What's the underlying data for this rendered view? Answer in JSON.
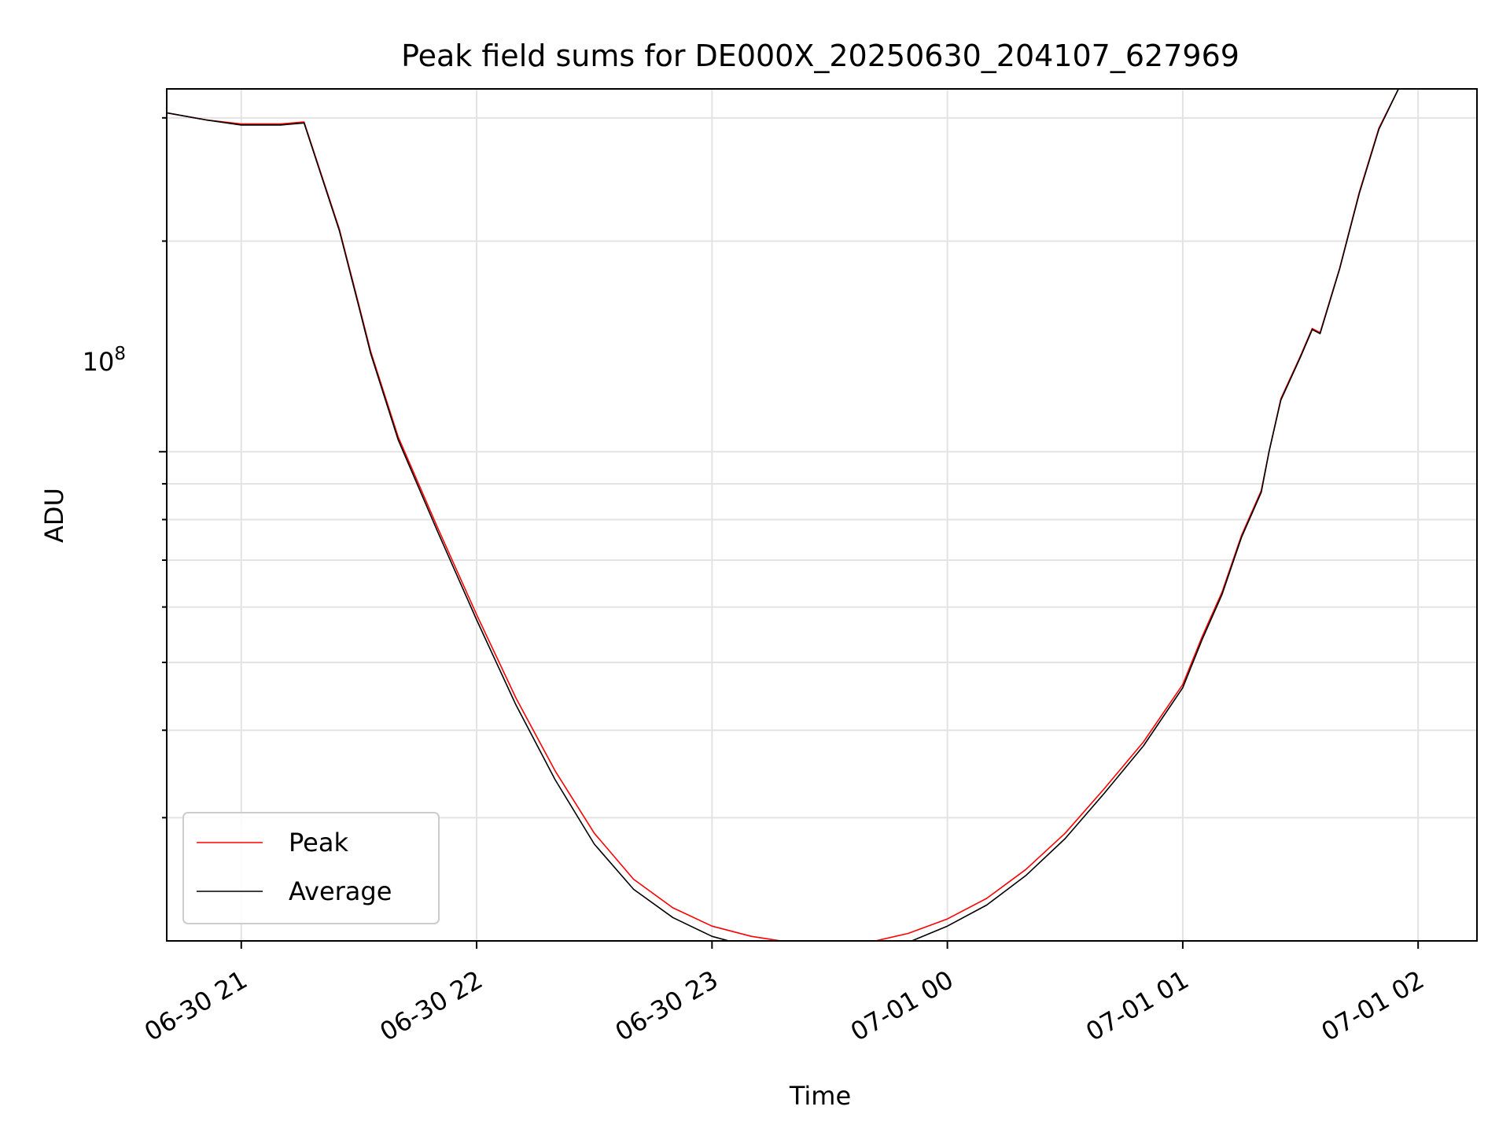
{
  "chart_data": {
    "type": "line",
    "title": "Peak field sums for DE000X_20250630_204107_627969",
    "xlabel": "Time",
    "ylabel": "ADU",
    "y_scale": "log",
    "x_tick_labels": [
      "06-30 21",
      "06-30 22",
      "06-30 23",
      "07-01 00",
      "07-01 01",
      "07-01 02"
    ],
    "x_ticks": [
      "2025-06-30 21:00",
      "2025-06-30 22:00",
      "2025-06-30 23:00",
      "2025-07-01 00:00",
      "2025-07-01 01:00",
      "2025-07-01 02:00"
    ],
    "xlim": [
      "2025-06-30 20:41",
      "2025-07-01 02:15"
    ],
    "ylim": [
      20000000,
      330000000
    ],
    "y_tick_major": {
      "value": 100000000,
      "base": "10",
      "exponent": "8"
    },
    "y_tick_minor": [
      30000000,
      40000000,
      50000000,
      60000000,
      70000000,
      80000000,
      90000000,
      200000000,
      300000000
    ],
    "grid": true,
    "legend_position": "lower-left",
    "legend": [
      {
        "label": "Peak",
        "color": "#ff0000"
      },
      {
        "label": "Average",
        "color": "#000000"
      }
    ],
    "series": [
      {
        "name": "Peak",
        "color": "#ff0000",
        "x": [
          "2025-06-30 20:41",
          "2025-06-30 20:51",
          "2025-06-30 21:00",
          "2025-06-30 21:10",
          "2025-06-30 21:16",
          "2025-06-30 21:25",
          "2025-06-30 21:30",
          "2025-06-30 21:33",
          "2025-06-30 21:40",
          "2025-06-30 21:50",
          "2025-06-30 22:00",
          "2025-06-30 22:10",
          "2025-06-30 22:20",
          "2025-06-30 22:30",
          "2025-06-30 22:40",
          "2025-06-30 22:50",
          "2025-06-30 23:00",
          "2025-06-30 23:10",
          "2025-06-30 23:20",
          "2025-06-30 23:30",
          "2025-06-30 23:40",
          "2025-06-30 23:50",
          "2025-07-01 00:00",
          "2025-07-01 00:10",
          "2025-07-01 00:20",
          "2025-07-01 00:30",
          "2025-07-01 00:40",
          "2025-07-01 00:50",
          "2025-07-01 01:00",
          "2025-07-01 01:05",
          "2025-07-01 01:10",
          "2025-07-01 01:15",
          "2025-07-01 01:20",
          "2025-07-01 01:22",
          "2025-07-01 01:25",
          "2025-07-01 01:30",
          "2025-07-01 01:33",
          "2025-07-01 01:35",
          "2025-07-01 01:40",
          "2025-07-01 01:45",
          "2025-07-01 01:50",
          "2025-07-01 01:55",
          "2025-07-01 02:00"
        ],
        "y": [
          305000000,
          298000000,
          294000000,
          294000000,
          296000000,
          208000000,
          162000000,
          139000000,
          105000000,
          78000000,
          58500000,
          44500000,
          35000000,
          28500000,
          24500000,
          22300000,
          21000000,
          20300000,
          19900000,
          19700000,
          19900000,
          20500000,
          21500000,
          23000000,
          25300000,
          28500000,
          33000000,
          38500000,
          46500000,
          54500000,
          63000000,
          76000000,
          88000000,
          100000000,
          119000000,
          137000000,
          150000000,
          148000000,
          183000000,
          235000000,
          290000000,
          330000000,
          330000000
        ]
      },
      {
        "name": "Average",
        "color": "#000000",
        "x": [
          "2025-06-30 20:41",
          "2025-06-30 20:51",
          "2025-06-30 21:00",
          "2025-06-30 21:10",
          "2025-06-30 21:16",
          "2025-06-30 21:25",
          "2025-06-30 21:30",
          "2025-06-30 21:33",
          "2025-06-30 21:40",
          "2025-06-30 21:50",
          "2025-06-30 22:00",
          "2025-06-30 22:10",
          "2025-06-30 22:20",
          "2025-06-30 22:30",
          "2025-06-30 22:40",
          "2025-06-30 22:50",
          "2025-06-30 23:00",
          "2025-06-30 23:10",
          "2025-06-30 23:20",
          "2025-06-30 23:30",
          "2025-06-30 23:40",
          "2025-06-30 23:50",
          "2025-07-01 00:00",
          "2025-07-01 00:10",
          "2025-07-01 00:20",
          "2025-07-01 00:30",
          "2025-07-01 00:40",
          "2025-07-01 00:50",
          "2025-07-01 01:00",
          "2025-07-01 01:05",
          "2025-07-01 01:10",
          "2025-07-01 01:15",
          "2025-07-01 01:20",
          "2025-07-01 01:22",
          "2025-07-01 01:25",
          "2025-07-01 01:30",
          "2025-07-01 01:33",
          "2025-07-01 01:35",
          "2025-07-01 01:40",
          "2025-07-01 01:45",
          "2025-07-01 01:50",
          "2025-07-01 01:55",
          "2025-07-01 02:00"
        ],
        "y": [
          305000000,
          298000000,
          293000000,
          293000000,
          295000000,
          207000000,
          161000000,
          138000000,
          104000000,
          77000000,
          57500000,
          43500000,
          34000000,
          27500000,
          23700000,
          21600000,
          20300000,
          19600000,
          19200000,
          19000000,
          19200000,
          19900000,
          21000000,
          22500000,
          24800000,
          28000000,
          32500000,
          38000000,
          46000000,
          54000000,
          62500000,
          75500000,
          87500000,
          100000000,
          118500000,
          136500000,
          149500000,
          147500000,
          182500000,
          234000000,
          289000000,
          330000000,
          330000000
        ]
      }
    ]
  }
}
